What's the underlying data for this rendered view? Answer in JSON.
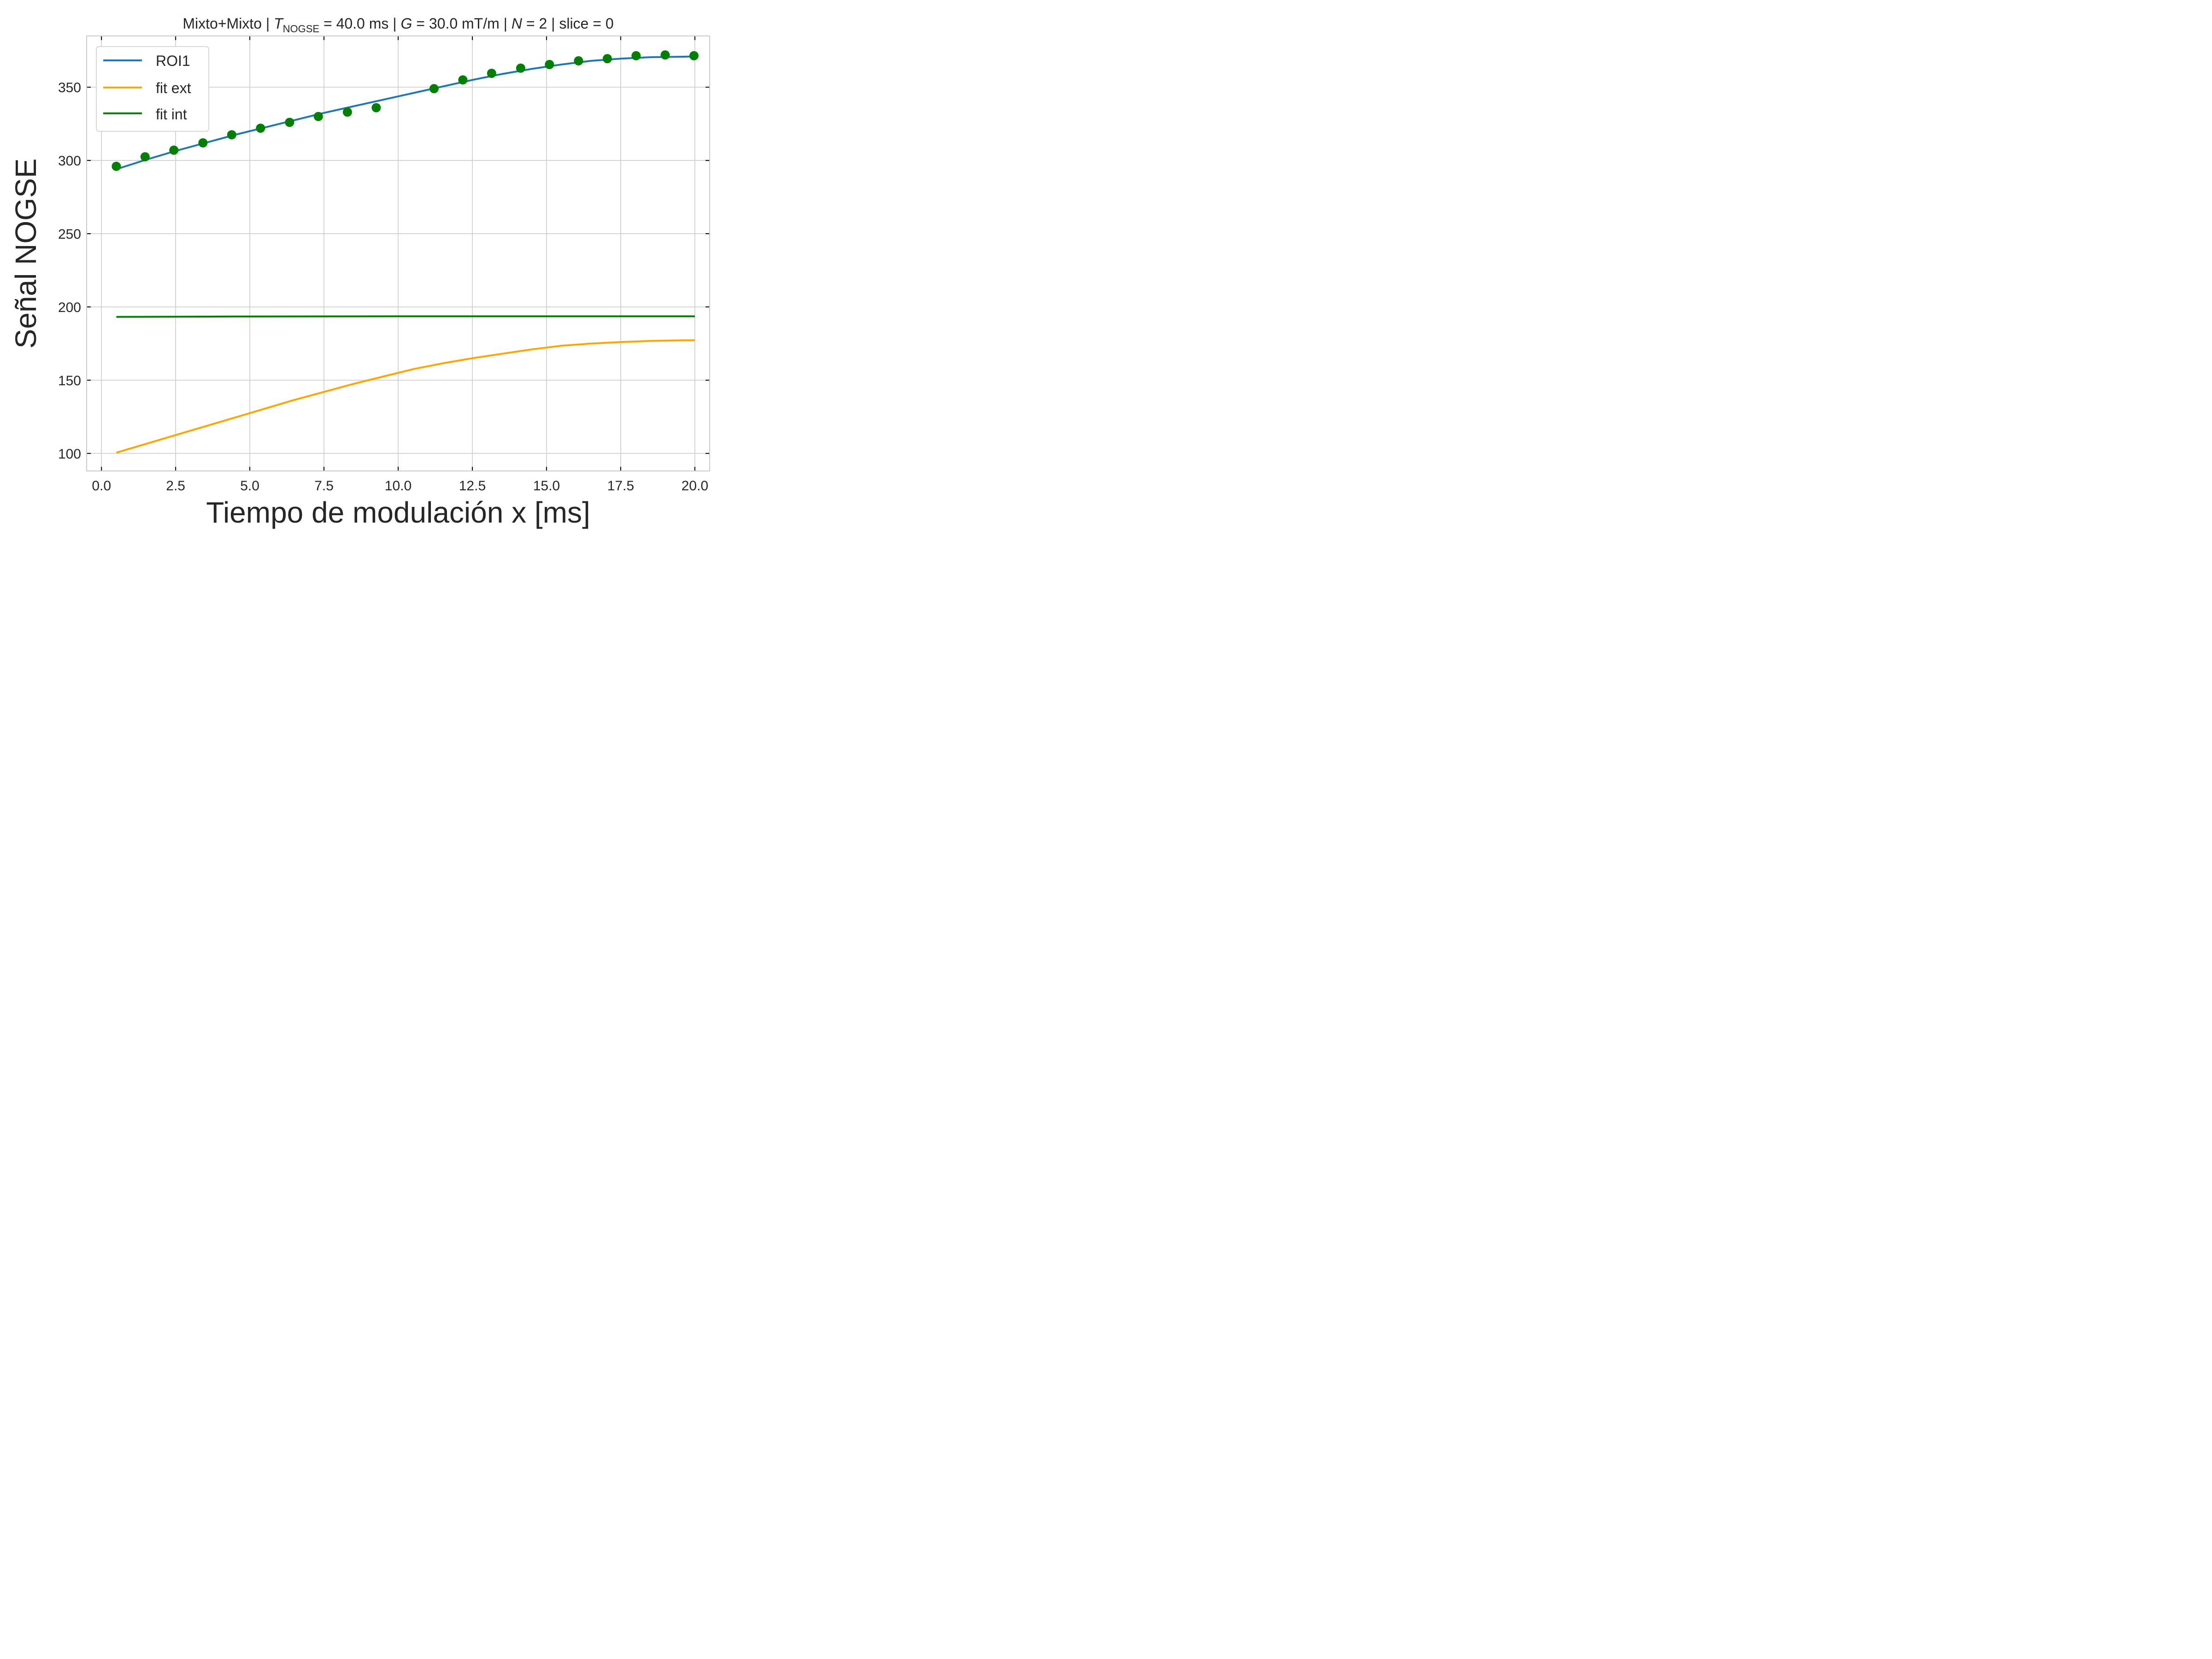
{
  "chart_data": {
    "type": "line",
    "title": {
      "prefix": "Mixto+Mixto | ",
      "t_symbol": "T",
      "t_subscript": "NOGSE",
      "t_value": " = 40.0 ms | ",
      "g_symbol": "G",
      "g_value": " = 30.0 mT/m | ",
      "n_symbol": "N",
      "n_value": " = 2 | slice = 0"
    },
    "xlabel": "Tiempo de modulación x [ms]",
    "ylabel": "Señal NOGSE",
    "xlim": [
      -0.5,
      20.5
    ],
    "ylim": [
      88,
      385
    ],
    "xticks": [
      0.0,
      2.5,
      5.0,
      7.5,
      10.0,
      12.5,
      15.0,
      17.5,
      20.0
    ],
    "xtick_labels": [
      "0.0",
      "2.5",
      "5.0",
      "7.5",
      "10.0",
      "12.5",
      "15.0",
      "17.5",
      "20.0"
    ],
    "yticks": [
      100,
      150,
      200,
      250,
      300,
      350
    ],
    "ytick_labels": [
      "100",
      "150",
      "200",
      "250",
      "300",
      "350"
    ],
    "grid": true,
    "legend_position": "top-left",
    "series": [
      {
        "name": "ROI1",
        "kind": "line",
        "color": "#1f77b4",
        "x": [
          0.5,
          1.5,
          2.5,
          3.5,
          4.5,
          5.5,
          6.5,
          7.5,
          8.5,
          9.5,
          10.5,
          11.5,
          12.5,
          13.5,
          14.5,
          15.5,
          16.5,
          17.5,
          18.5,
          19.5,
          20.0
        ],
        "y": [
          294,
          300.5,
          306.5,
          312,
          317.5,
          322.5,
          327.5,
          332.5,
          337,
          341.5,
          346,
          350.5,
          355,
          359,
          362.5,
          365.5,
          368,
          369.5,
          370.5,
          370.8,
          371
        ]
      },
      {
        "name": "fit ext",
        "kind": "line",
        "color": "#ffa500",
        "x": [
          0.5,
          1.5,
          2.5,
          3.5,
          4.5,
          5.5,
          6.5,
          7.5,
          8.5,
          9.5,
          10.5,
          11.5,
          12.5,
          13.5,
          14.5,
          15.5,
          16.5,
          17.5,
          18.5,
          19.5,
          20.0
        ],
        "y": [
          100.5,
          106.5,
          112.5,
          118.5,
          124.5,
          130.5,
          136.5,
          142,
          147.5,
          152.5,
          157.5,
          161.5,
          165,
          168,
          171,
          173.5,
          175,
          176,
          176.8,
          177.2,
          177.3
        ]
      },
      {
        "name": "fit int",
        "kind": "line",
        "color": "#008000",
        "x": [
          0.5,
          5.0,
          10.0,
          15.0,
          20.0
        ],
        "y": [
          193.2,
          193.5,
          193.6,
          193.6,
          193.6
        ]
      },
      {
        "kind": "scatter",
        "color": "#008000",
        "x": [
          0.5,
          1.47,
          2.44,
          3.42,
          4.39,
          5.36,
          6.34,
          7.31,
          8.29,
          9.26,
          11.21,
          12.18,
          13.15,
          14.13,
          15.1,
          16.08,
          17.05,
          18.02,
          19.0,
          19.97
        ],
        "y": [
          296,
          302.5,
          307,
          312,
          317.5,
          322,
          326,
          330,
          333,
          336,
          349,
          355,
          359.5,
          363,
          365.5,
          368,
          369.5,
          371.5,
          372,
          371.5
        ]
      }
    ]
  }
}
